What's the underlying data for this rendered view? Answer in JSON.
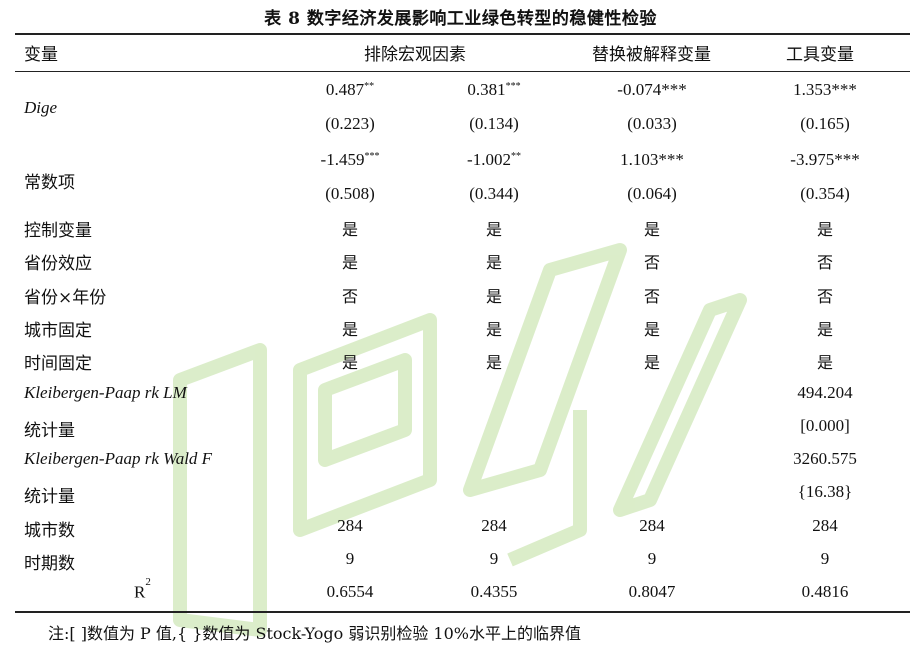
{
  "title": "表 8  数字经济发展影响工业绿色转型的稳健性检验",
  "header": {
    "col0": "变量",
    "group1": "排除宏观因素",
    "group2": "替换被解释变量",
    "group3": "工具变量"
  },
  "rows": [
    {
      "label": "Dige",
      "italic": true,
      "lines": [
        {
          "c1": "0.487",
          "c1s": "**",
          "c2": "0.381",
          "c2s": "***",
          "c3": "-0.074***",
          "c4": "1.353***"
        },
        {
          "c1": "(0.223)",
          "c2": "(0.134)",
          "c3": "(0.033)",
          "c4": "(0.165)"
        }
      ]
    },
    {
      "label": "常数项",
      "lines": [
        {
          "c1": "-1.459",
          "c1s": "***",
          "c2": "-1.002",
          "c2s": "**",
          "c3": "1.103***",
          "c4": "-3.975***"
        },
        {
          "c1": "(0.508)",
          "c2": "(0.344)",
          "c3": "(0.064)",
          "c4": "(0.354)"
        }
      ]
    }
  ],
  "simple_rows": [
    {
      "label": "控制变量",
      "c1": "是",
      "c2": "是",
      "c3": "是",
      "c4": "是",
      "zh": true
    },
    {
      "label": "省份效应",
      "c1": "是",
      "c2": "是",
      "c3": "否",
      "c4": "否",
      "zh": true
    },
    {
      "label": "省份×年份",
      "c1": "否",
      "c2": "是",
      "c3": "否",
      "c4": "否",
      "zh": true
    },
    {
      "label": "城市固定",
      "c1": "是",
      "c2": "是",
      "c3": "是",
      "c4": "是",
      "zh": true
    },
    {
      "label": "时间固定",
      "c1": "是",
      "c2": "是",
      "c3": "是",
      "c4": "是",
      "zh": true
    },
    {
      "label": "Kleibergen-Paap rk LM",
      "italic": true,
      "c1": "",
      "c2": "",
      "c3": "",
      "c4": "494.204"
    },
    {
      "label": "统计量",
      "c1": "",
      "c2": "",
      "c3": "",
      "c4": "[0.000]"
    },
    {
      "label": "Kleibergen-Paap rk Wald F",
      "italic": true,
      "c1": "",
      "c2": "",
      "c3": "",
      "c4": "3260.575"
    },
    {
      "label": "统计量",
      "c1": "",
      "c2": "",
      "c3": "",
      "c4": "{16.38}"
    },
    {
      "label": "城市数",
      "c1": "284",
      "c2": "284",
      "c3": "284",
      "c4": "284"
    },
    {
      "label": "时期数",
      "c1": "9",
      "c2": "9",
      "c3": "9",
      "c4": "9"
    }
  ],
  "r2": {
    "label": "R",
    "label_sup": "2",
    "c1": "0.6554",
    "c2": "0.4355",
    "c3": "0.8047",
    "c4": "0.4816"
  },
  "note": "注:[ ]数值为 P 值,{ }数值为 Stock-Yogo 弱识别检验 10%水平上的临界值"
}
